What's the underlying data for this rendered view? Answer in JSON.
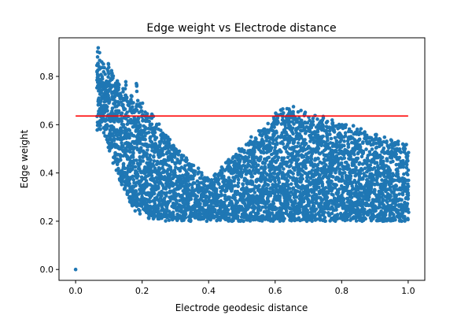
{
  "chart_data": {
    "type": "scatter",
    "title": "Edge weight vs Electrode distance",
    "xlabel": "Electrode geodesic distance",
    "ylabel": "Edge weight",
    "xlim": [
      -0.05,
      1.05
    ],
    "ylim": [
      -0.045,
      0.96
    ],
    "x_ticks": [
      0.0,
      0.2,
      0.4,
      0.6,
      0.8,
      1.0
    ],
    "x_tick_labels": [
      "0.0",
      "0.2",
      "0.4",
      "0.6",
      "0.8",
      "1.0"
    ],
    "y_ticks": [
      0.0,
      0.2,
      0.4,
      0.6,
      0.8
    ],
    "y_tick_labels": [
      "0.0",
      "0.2",
      "0.4",
      "0.6",
      "0.8"
    ],
    "grid": false,
    "colors": {
      "points": "#1f77b4",
      "reference_line": "#ff0000"
    },
    "reference_line": {
      "y": 0.636,
      "x_start": 0.0,
      "x_end": 1.0
    },
    "series": [
      {
        "x": [
          0.0,
          0.065,
          0.068,
          0.07,
          0.072,
          0.075,
          0.078,
          0.08,
          0.083,
          0.085,
          0.088,
          0.09,
          0.093,
          0.095,
          0.098,
          0.1,
          0.103,
          0.105,
          0.108,
          0.11,
          0.113,
          0.115,
          0.118,
          0.12,
          0.123,
          0.125,
          0.128,
          0.13,
          0.133,
          0.135,
          0.138,
          0.14,
          0.143,
          0.145,
          0.148,
          0.15,
          0.153,
          0.155,
          0.158,
          0.16,
          0.163,
          0.165,
          0.168,
          0.17,
          0.173,
          0.175,
          0.178,
          0.18,
          0.183,
          0.185,
          0.188,
          0.19,
          0.193,
          0.195,
          0.198,
          0.2,
          0.203,
          0.205,
          0.208,
          0.21,
          0.213,
          0.215,
          0.218,
          0.22,
          0.223,
          0.225,
          0.228,
          0.23,
          0.233,
          0.235,
          0.238,
          0.24,
          0.243,
          0.245,
          0.248,
          0.25,
          0.253,
          0.255,
          0.258,
          0.26,
          0.263,
          0.265,
          0.268,
          0.27,
          0.273,
          0.275,
          0.278,
          0.28,
          0.283,
          0.285,
          0.288,
          0.29,
          0.293,
          0.295,
          0.298,
          0.3,
          0.303,
          0.305,
          0.308,
          0.31,
          0.313,
          0.315,
          0.318,
          0.32,
          0.323,
          0.325,
          0.328,
          0.33,
          0.333,
          0.335,
          0.338,
          0.34,
          0.343,
          0.345,
          0.348,
          0.35,
          0.353,
          0.355,
          0.358,
          0.36,
          0.363,
          0.365,
          0.368,
          0.37,
          0.373,
          0.375,
          0.378,
          0.38,
          0.383,
          0.385,
          0.388,
          0.39,
          0.393,
          0.395,
          0.398,
          0.4,
          0.403,
          0.405,
          0.408,
          0.41,
          0.413,
          0.415,
          0.418,
          0.42,
          0.423,
          0.425,
          0.428,
          0.43,
          0.433,
          0.435,
          0.438,
          0.44,
          0.443,
          0.445,
          0.448,
          0.45,
          0.453,
          0.455,
          0.458,
          0.46,
          0.463,
          0.465,
          0.468,
          0.47,
          0.473,
          0.475,
          0.478,
          0.48,
          0.483,
          0.485,
          0.488,
          0.49,
          0.493,
          0.495,
          0.498,
          0.5,
          0.503,
          0.505,
          0.508,
          0.51,
          0.513,
          0.515,
          0.518,
          0.52,
          0.523,
          0.525,
          0.528,
          0.53,
          0.533,
          0.535,
          0.538,
          0.54,
          0.543,
          0.545,
          0.548,
          0.55,
          0.553,
          0.555,
          0.558,
          0.56,
          0.563,
          0.565,
          0.568,
          0.57,
          0.573,
          0.575,
          0.578,
          0.58,
          0.583,
          0.585,
          0.588,
          0.59,
          0.593,
          0.595,
          0.598,
          0.6,
          0.603,
          0.605,
          0.608,
          0.61,
          0.613,
          0.615,
          0.618,
          0.62,
          0.623,
          0.625,
          0.628,
          0.63,
          0.633,
          0.635,
          0.638,
          0.64,
          0.643,
          0.645,
          0.648,
          0.65,
          0.653,
          0.655,
          0.658,
          0.66,
          0.663,
          0.665,
          0.668,
          0.67,
          0.673,
          0.675,
          0.678,
          0.68,
          0.683,
          0.685,
          0.688,
          0.69,
          0.693,
          0.695,
          0.698,
          0.7,
          0.703,
          0.705,
          0.708,
          0.71,
          0.713,
          0.715,
          0.718,
          0.72,
          0.723,
          0.725,
          0.728,
          0.73,
          0.733,
          0.735,
          0.738,
          0.74,
          0.743,
          0.745,
          0.748,
          0.75,
          0.753,
          0.755,
          0.758,
          0.76,
          0.763,
          0.765,
          0.768,
          0.77,
          0.773,
          0.775,
          0.778,
          0.78,
          0.783,
          0.785,
          0.788,
          0.79,
          0.793,
          0.795,
          0.798,
          0.8,
          0.803,
          0.805,
          0.808,
          0.81,
          0.813,
          0.815,
          0.818,
          0.82,
          0.823,
          0.825,
          0.828,
          0.83,
          0.833,
          0.835,
          0.838,
          0.84,
          0.843,
          0.845,
          0.848,
          0.85,
          0.853,
          0.855,
          0.858,
          0.86,
          0.863,
          0.865,
          0.868,
          0.87,
          0.873,
          0.875,
          0.878,
          0.88,
          0.883,
          0.885,
          0.888,
          0.89,
          0.893,
          0.895,
          0.898,
          0.9,
          0.903,
          0.905,
          0.908,
          0.91,
          0.913,
          0.915,
          0.918,
          0.92,
          0.923,
          0.925,
          0.928,
          0.93,
          0.933,
          0.935,
          0.938,
          0.94,
          0.943,
          0.945,
          0.948,
          0.95,
          0.953,
          0.955,
          0.958,
          0.96,
          0.963,
          0.965,
          0.968,
          0.97,
          0.973,
          0.975,
          0.978,
          0.98,
          0.983,
          0.985,
          0.988,
          0.99,
          0.993,
          0.995,
          0.998,
          1.0
        ],
        "y_min": [
          0.0,
          0.55,
          0.57,
          0.58,
          0.6,
          0.58,
          0.59,
          0.6,
          0.57,
          0.56,
          0.55,
          0.55,
          0.54,
          0.53,
          0.5,
          0.52,
          0.49,
          0.5,
          0.47,
          0.48,
          0.44,
          0.45,
          0.42,
          0.43,
          0.41,
          0.4,
          0.39,
          0.38,
          0.37,
          0.38,
          0.36,
          0.35,
          0.34,
          0.33,
          0.33,
          0.32,
          0.34,
          0.31,
          0.3,
          0.29,
          0.28,
          0.28,
          0.27,
          0.26,
          0.27,
          0.25,
          0.26,
          0.24,
          0.25,
          0.24,
          0.25,
          0.23,
          0.24,
          0.23,
          0.24,
          0.23,
          0.24,
          0.22,
          0.23,
          0.22,
          0.23,
          0.22,
          0.23,
          0.21,
          0.22,
          0.21,
          0.22,
          0.21,
          0.22,
          0.21,
          0.22,
          0.21,
          0.22,
          0.21,
          0.21,
          0.2,
          0.21,
          0.2,
          0.21,
          0.2,
          0.21,
          0.2,
          0.21,
          0.2,
          0.21,
          0.2,
          0.21,
          0.2,
          0.21,
          0.2,
          0.21,
          0.2,
          0.21,
          0.2,
          0.21,
          0.2,
          0.21,
          0.2,
          0.21,
          0.2,
          0.21,
          0.2,
          0.21,
          0.2,
          0.21,
          0.2,
          0.21,
          0.2,
          0.21,
          0.2,
          0.21,
          0.2,
          0.21,
          0.2,
          0.21,
          0.2,
          0.21,
          0.2,
          0.21,
          0.2,
          0.21,
          0.2,
          0.21,
          0.2,
          0.21,
          0.2,
          0.21,
          0.2,
          0.21,
          0.2,
          0.21,
          0.2,
          0.21,
          0.2,
          0.21,
          0.2,
          0.21,
          0.2,
          0.21,
          0.2,
          0.21,
          0.2,
          0.21,
          0.2,
          0.21,
          0.2,
          0.21,
          0.2,
          0.21,
          0.2,
          0.21,
          0.2,
          0.21,
          0.2,
          0.21,
          0.2,
          0.21,
          0.2,
          0.21,
          0.2,
          0.21,
          0.2,
          0.21,
          0.2,
          0.21,
          0.2,
          0.21,
          0.2,
          0.21,
          0.2,
          0.21,
          0.2,
          0.21,
          0.2,
          0.21,
          0.2,
          0.21,
          0.2,
          0.21,
          0.2,
          0.21,
          0.2,
          0.21,
          0.2,
          0.21,
          0.2,
          0.21,
          0.2,
          0.21,
          0.2,
          0.21,
          0.2,
          0.21,
          0.2,
          0.21,
          0.2,
          0.21,
          0.2,
          0.21,
          0.2,
          0.21,
          0.2,
          0.21,
          0.2,
          0.21,
          0.2,
          0.21,
          0.2,
          0.21,
          0.2,
          0.21,
          0.2,
          0.21,
          0.2,
          0.21,
          0.2,
          0.21,
          0.2,
          0.21,
          0.2,
          0.21,
          0.2,
          0.21,
          0.2,
          0.21,
          0.2,
          0.21,
          0.2,
          0.21,
          0.2,
          0.21,
          0.2,
          0.21,
          0.2,
          0.21,
          0.2,
          0.21,
          0.2,
          0.21,
          0.2,
          0.21,
          0.2,
          0.21,
          0.2,
          0.21,
          0.2,
          0.21,
          0.2,
          0.21,
          0.2,
          0.21,
          0.2,
          0.21,
          0.2,
          0.21,
          0.2,
          0.21,
          0.2,
          0.21,
          0.2,
          0.21,
          0.2,
          0.21,
          0.2,
          0.21,
          0.2,
          0.21,
          0.2,
          0.21,
          0.2,
          0.21,
          0.2,
          0.21,
          0.2,
          0.21,
          0.2,
          0.21,
          0.2,
          0.21,
          0.2,
          0.21,
          0.2,
          0.21,
          0.2,
          0.21,
          0.2,
          0.21,
          0.2,
          0.21,
          0.2,
          0.21,
          0.2,
          0.21,
          0.2,
          0.21,
          0.2,
          0.21,
          0.2,
          0.21,
          0.2,
          0.21,
          0.2,
          0.21,
          0.2,
          0.21,
          0.2,
          0.21,
          0.2,
          0.21,
          0.2,
          0.21,
          0.2,
          0.21,
          0.2,
          0.21,
          0.2,
          0.21,
          0.2,
          0.21,
          0.2,
          0.21,
          0.2,
          0.21,
          0.2,
          0.21,
          0.2,
          0.21,
          0.2,
          0.21,
          0.2,
          0.21,
          0.2,
          0.21,
          0.2,
          0.21,
          0.2,
          0.21,
          0.2,
          0.21,
          0.2,
          0.21,
          0.2,
          0.21,
          0.2,
          0.21,
          0.2,
          0.21,
          0.2,
          0.21,
          0.2,
          0.21,
          0.2,
          0.21,
          0.2,
          0.21,
          0.2,
          0.21,
          0.2,
          0.21,
          0.2,
          0.21,
          0.2,
          0.21,
          0.2,
          0.21,
          0.2,
          0.21,
          0.2,
          0.21,
          0.2,
          0.21,
          0.2,
          0.21,
          0.2,
          0.21,
          0.2
        ],
        "y_max": [
          0.0,
          0.94,
          0.93,
          0.92,
          0.9,
          0.88,
          0.87,
          0.86,
          0.85,
          0.86,
          0.84,
          0.83,
          0.85,
          0.84,
          0.86,
          0.84,
          0.83,
          0.82,
          0.84,
          0.83,
          0.82,
          0.8,
          0.81,
          0.8,
          0.78,
          0.79,
          0.8,
          0.78,
          0.77,
          0.76,
          0.77,
          0.75,
          0.76,
          0.74,
          0.75,
          0.78,
          0.73,
          0.74,
          0.72,
          0.73,
          0.71,
          0.72,
          0.74,
          0.7,
          0.72,
          0.7,
          0.71,
          0.7,
          0.78,
          0.69,
          0.7,
          0.68,
          0.69,
          0.67,
          0.68,
          0.7,
          0.67,
          0.66,
          0.67,
          0.66,
          0.65,
          0.66,
          0.64,
          0.65,
          0.64,
          0.63,
          0.64,
          0.65,
          0.63,
          0.64,
          0.62,
          0.63,
          0.61,
          0.62,
          0.6,
          0.61,
          0.59,
          0.6,
          0.58,
          0.59,
          0.57,
          0.58,
          0.56,
          0.57,
          0.55,
          0.56,
          0.55,
          0.54,
          0.55,
          0.53,
          0.54,
          0.52,
          0.53,
          0.51,
          0.52,
          0.5,
          0.51,
          0.5,
          0.49,
          0.5,
          0.49,
          0.48,
          0.49,
          0.48,
          0.47,
          0.48,
          0.47,
          0.46,
          0.47,
          0.46,
          0.45,
          0.46,
          0.45,
          0.44,
          0.45,
          0.44,
          0.43,
          0.44,
          0.43,
          0.42,
          0.43,
          0.42,
          0.41,
          0.42,
          0.41,
          0.4,
          0.41,
          0.4,
          0.39,
          0.4,
          0.39,
          0.38,
          0.39,
          0.38,
          0.37,
          0.38,
          0.37,
          0.38,
          0.37,
          0.38,
          0.37,
          0.38,
          0.39,
          0.4,
          0.39,
          0.4,
          0.41,
          0.42,
          0.41,
          0.42,
          0.43,
          0.42,
          0.43,
          0.44,
          0.43,
          0.44,
          0.45,
          0.44,
          0.45,
          0.46,
          0.45,
          0.46,
          0.47,
          0.46,
          0.47,
          0.48,
          0.47,
          0.48,
          0.49,
          0.48,
          0.49,
          0.5,
          0.49,
          0.5,
          0.51,
          0.5,
          0.51,
          0.52,
          0.51,
          0.52,
          0.53,
          0.52,
          0.53,
          0.54,
          0.53,
          0.54,
          0.55,
          0.54,
          0.55,
          0.56,
          0.55,
          0.56,
          0.57,
          0.56,
          0.57,
          0.58,
          0.57,
          0.58,
          0.59,
          0.58,
          0.59,
          0.6,
          0.59,
          0.6,
          0.61,
          0.6,
          0.61,
          0.62,
          0.61,
          0.62,
          0.63,
          0.62,
          0.63,
          0.64,
          0.63,
          0.64,
          0.65,
          0.64,
          0.65,
          0.66,
          0.65,
          0.66,
          0.67,
          0.66,
          0.67,
          0.68,
          0.67,
          0.66,
          0.67,
          0.68,
          0.67,
          0.66,
          0.67,
          0.68,
          0.67,
          0.66,
          0.67,
          0.68,
          0.67,
          0.66,
          0.65,
          0.66,
          0.67,
          0.66,
          0.65,
          0.66,
          0.67,
          0.66,
          0.65,
          0.64,
          0.65,
          0.66,
          0.65,
          0.64,
          0.65,
          0.66,
          0.65,
          0.64,
          0.63,
          0.64,
          0.65,
          0.64,
          0.63,
          0.64,
          0.65,
          0.64,
          0.63,
          0.62,
          0.63,
          0.64,
          0.63,
          0.62,
          0.63,
          0.64,
          0.63,
          0.62,
          0.61,
          0.62,
          0.63,
          0.62,
          0.61,
          0.62,
          0.63,
          0.62,
          0.61,
          0.6,
          0.61,
          0.62,
          0.61,
          0.6,
          0.61,
          0.62,
          0.61,
          0.6,
          0.59,
          0.6,
          0.61,
          0.6,
          0.59,
          0.6,
          0.61,
          0.6,
          0.59,
          0.58,
          0.59,
          0.6,
          0.59,
          0.58,
          0.59,
          0.6,
          0.59,
          0.58,
          0.57,
          0.58,
          0.59,
          0.58,
          0.57,
          0.58,
          0.59,
          0.58,
          0.57,
          0.56,
          0.57,
          0.58,
          0.57,
          0.56,
          0.57,
          0.58,
          0.57,
          0.56,
          0.55,
          0.56,
          0.57,
          0.56,
          0.55,
          0.56,
          0.57,
          0.56,
          0.55,
          0.54,
          0.55,
          0.56,
          0.55,
          0.54,
          0.55,
          0.56,
          0.55,
          0.54,
          0.53,
          0.54,
          0.55,
          0.54,
          0.53,
          0.54,
          0.55,
          0.54,
          0.53,
          0.52,
          0.53,
          0.54,
          0.53,
          0.52,
          0.53,
          0.54,
          0.53,
          0.52,
          0.51,
          0.52,
          0.53,
          0.52,
          0.51,
          0.52,
          0.53,
          0.52,
          0.51,
          0.5,
          0.51,
          0.52,
          0.51,
          0.5,
          0.51,
          0.52,
          0.51,
          0.5,
          0.49,
          0.5,
          0.51,
          0.5,
          0.49,
          0.5,
          0.51
        ]
      }
    ]
  }
}
